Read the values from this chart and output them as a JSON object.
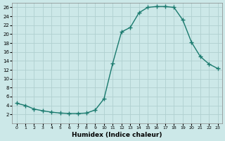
{
  "x": [
    0,
    1,
    2,
    3,
    4,
    5,
    6,
    7,
    8,
    9,
    10,
    11,
    12,
    13,
    14,
    15,
    16,
    17,
    18,
    19,
    20,
    21,
    22,
    23
  ],
  "y": [
    4.5,
    4.0,
    3.2,
    2.8,
    2.5,
    2.3,
    2.2,
    2.2,
    2.3,
    3.0,
    5.5,
    13.5,
    20.5,
    21.5,
    24.8,
    26.0,
    26.2,
    26.2,
    26.0,
    23.2,
    18.2,
    15.0,
    13.3,
    12.3
  ],
  "line_color": "#1a7a6e",
  "marker": "+",
  "marker_size": 4,
  "linewidth": 1.0,
  "xlabel": "Humidex (Indice chaleur)",
  "xlim": [
    -0.5,
    23.5
  ],
  "ylim": [
    0,
    27
  ],
  "yticks": [
    2,
    4,
    6,
    8,
    10,
    12,
    14,
    16,
    18,
    20,
    22,
    24,
    26
  ],
  "xticks": [
    0,
    1,
    2,
    3,
    4,
    5,
    6,
    7,
    8,
    9,
    10,
    11,
    12,
    13,
    14,
    15,
    16,
    17,
    18,
    19,
    20,
    21,
    22,
    23
  ],
  "xtick_labels": [
    "0",
    "1",
    "2",
    "3",
    "4",
    "5",
    "6",
    "7",
    "8",
    "9",
    "10",
    "11",
    "12",
    "13",
    "14",
    "15",
    "16",
    "17",
    "18",
    "19",
    "20",
    "21",
    "22",
    "23"
  ],
  "bg_color": "#cce8e8",
  "grid_color": "#b0d0d0",
  "title": ""
}
